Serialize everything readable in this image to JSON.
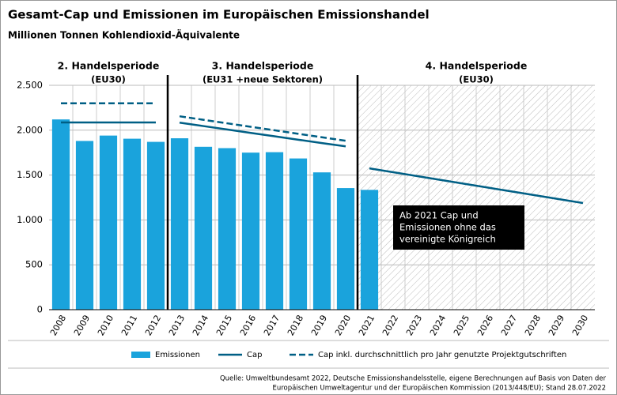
{
  "chart_data": {
    "type": "bar-line",
    "title": "Gesamt-Cap und Emissionen im Europäischen Emissionshandel",
    "subtitle": "Millionen Tonnen Kohlendioxid-Äquivalente",
    "categories": [
      "2008",
      "2009",
      "2010",
      "2011",
      "2012",
      "2013",
      "2014",
      "2015",
      "2016",
      "2017",
      "2018",
      "2019",
      "2020",
      "2021",
      "2022",
      "2023",
      "2024",
      "2025",
      "2026",
      "2027",
      "2028",
      "2029",
      "2030"
    ],
    "series": [
      {
        "name": "Emissionen",
        "kind": "bar",
        "color": "#1aa3dc",
        "values": [
          2120,
          1880,
          1940,
          1905,
          1870,
          1910,
          1815,
          1800,
          1750,
          1755,
          1685,
          1530,
          1355,
          1335,
          null,
          null,
          null,
          null,
          null,
          null,
          null,
          null,
          null
        ]
      },
      {
        "name": "Cap",
        "kind": "line",
        "color": "#005f85",
        "values": [
          2086,
          2086,
          2086,
          2086,
          2086,
          2084,
          2046,
          2008,
          1970,
          1932,
          1894,
          1856,
          1820,
          1575,
          1532,
          1489,
          1446,
          1403,
          1360,
          1317,
          1274,
          1231,
          1188
        ]
      },
      {
        "name": "Cap inkl. durchschnittlich pro Jahr genutzte Projektgutschriften",
        "kind": "dashed",
        "color": "#005f85",
        "values": [
          2300,
          2300,
          2300,
          2300,
          2300,
          2155,
          2116,
          2077,
          2038,
          1999,
          1960,
          1921,
          1882,
          null,
          null,
          null,
          null,
          null,
          null,
          null,
          null,
          null,
          null
        ]
      }
    ],
    "periods": [
      {
        "label": "2. Handelsperiode",
        "sublabel": "(EU30)",
        "from": "2008",
        "to": "2012"
      },
      {
        "label": "3. Handelsperiode",
        "sublabel": "(EU31 +neue Sektoren)",
        "from": "2013",
        "to": "2020"
      },
      {
        "label": "4. Handelsperiode",
        "sublabel": "(EU30)",
        "from": "2021",
        "to": "2030",
        "hatched": true
      }
    ],
    "ylim": [
      0,
      2500
    ],
    "yticks": [
      0,
      500,
      {
        "value": 1000,
        "label": "1.000"
      },
      {
        "value": 1500,
        "label": "1.500"
      },
      {
        "value": 2000,
        "label": "2.000"
      },
      {
        "value": 2500,
        "label": "2.500"
      }
    ],
    "grid": true,
    "annotation": [
      "Ab 2021 Cap und",
      "Emissionen ohne das",
      "vereinigte Königreich"
    ],
    "source": [
      "Quelle: Umweltbundesamt 2022, Deutsche Emissionshandelsstelle, eigene Berechnungen auf Basis von Daten der",
      "Europäischen Umweltagentur und der Europäischen Kommission (2013/448/EU); Stand 28.07.2022"
    ]
  }
}
